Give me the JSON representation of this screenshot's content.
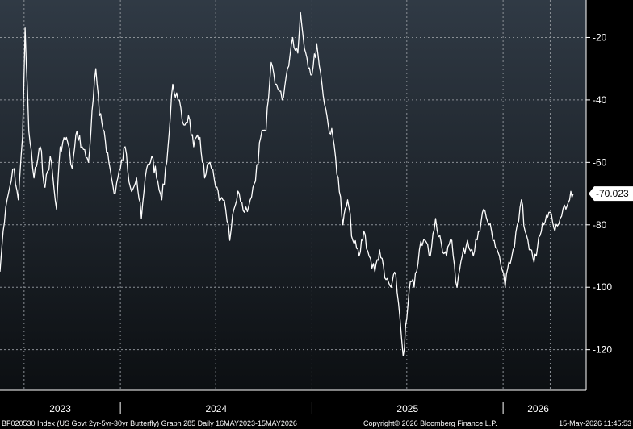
{
  "chart_data": {
    "type": "line",
    "title": "",
    "xlabel": "",
    "ylabel": "",
    "ylim": [
      -133,
      -8
    ],
    "y_ticks": [
      -20,
      -40,
      -60,
      -80,
      -100,
      -120
    ],
    "x_ticks": [
      "2023",
      "2024",
      "2025",
      "2026"
    ],
    "grid": true,
    "last_value": -70.023,
    "last_value_label": "-70.023",
    "series": [
      {
        "points": [
          [
            "2023-05-16",
            -95
          ],
          [
            "2023-05-22",
            -82
          ],
          [
            "2023-06-01",
            -70
          ],
          [
            "2023-06-12",
            -62
          ],
          [
            "2023-06-20",
            -72
          ],
          [
            "2023-06-28",
            -52
          ],
          [
            "2023-07-03",
            -17
          ],
          [
            "2023-07-10",
            -50
          ],
          [
            "2023-07-20",
            -65
          ],
          [
            "2023-08-01",
            -55
          ],
          [
            "2023-08-10",
            -68
          ],
          [
            "2023-08-20",
            -58
          ],
          [
            "2023-09-01",
            -75
          ],
          [
            "2023-09-08",
            -55
          ],
          [
            "2023-09-20",
            -52
          ],
          [
            "2023-10-01",
            -62
          ],
          [
            "2023-10-10",
            -50
          ],
          [
            "2023-10-20",
            -55
          ],
          [
            "2023-11-01",
            -60
          ],
          [
            "2023-11-10",
            -40
          ],
          [
            "2023-11-15",
            -30
          ],
          [
            "2023-11-22",
            -45
          ],
          [
            "2023-12-01",
            -50
          ],
          [
            "2023-12-10",
            -60
          ],
          [
            "2023-12-20",
            -70
          ],
          [
            "2024-01-01",
            -62
          ],
          [
            "2024-01-10",
            -55
          ],
          [
            "2024-01-20",
            -68
          ],
          [
            "2024-02-01",
            -65
          ],
          [
            "2024-02-10",
            -78
          ],
          [
            "2024-02-20",
            -62
          ],
          [
            "2024-03-01",
            -58
          ],
          [
            "2024-03-10",
            -65
          ],
          [
            "2024-03-20",
            -72
          ],
          [
            "2024-04-01",
            -55
          ],
          [
            "2024-04-10",
            -35
          ],
          [
            "2024-04-20",
            -40
          ],
          [
            "2024-05-01",
            -48
          ],
          [
            "2024-05-10",
            -45
          ],
          [
            "2024-05-20",
            -55
          ],
          [
            "2024-06-01",
            -52
          ],
          [
            "2024-06-10",
            -65
          ],
          [
            "2024-06-20",
            -60
          ],
          [
            "2024-07-01",
            -68
          ],
          [
            "2024-07-10",
            -72
          ],
          [
            "2024-07-20",
            -75
          ],
          [
            "2024-07-28",
            -85
          ],
          [
            "2024-08-05",
            -75
          ],
          [
            "2024-08-15",
            -70
          ],
          [
            "2024-08-25",
            -76
          ],
          [
            "2024-09-05",
            -72
          ],
          [
            "2024-09-15",
            -66
          ],
          [
            "2024-09-25",
            -52
          ],
          [
            "2024-10-05",
            -50
          ],
          [
            "2024-10-15",
            -28
          ],
          [
            "2024-10-25",
            -35
          ],
          [
            "2024-11-05",
            -40
          ],
          [
            "2024-11-15",
            -30
          ],
          [
            "2024-11-25",
            -20
          ],
          [
            "2024-12-05",
            -25
          ],
          [
            "2024-12-10",
            -12
          ],
          [
            "2024-12-20",
            -25
          ],
          [
            "2025-01-01",
            -32
          ],
          [
            "2025-01-10",
            -22
          ],
          [
            "2025-01-20",
            -35
          ],
          [
            "2025-02-01",
            -48
          ],
          [
            "2025-02-10",
            -52
          ],
          [
            "2025-02-20",
            -65
          ],
          [
            "2025-03-01",
            -80
          ],
          [
            "2025-03-10",
            -72
          ],
          [
            "2025-03-20",
            -85
          ],
          [
            "2025-04-01",
            -90
          ],
          [
            "2025-04-10",
            -82
          ],
          [
            "2025-04-20",
            -90
          ],
          [
            "2025-05-01",
            -95
          ],
          [
            "2025-05-10",
            -88
          ],
          [
            "2025-05-20",
            -97
          ],
          [
            "2025-06-01",
            -100
          ],
          [
            "2025-06-10",
            -96
          ],
          [
            "2025-06-18",
            -110
          ],
          [
            "2025-06-24",
            -122
          ],
          [
            "2025-07-01",
            -110
          ],
          [
            "2025-07-08",
            -98
          ],
          [
            "2025-07-15",
            -100
          ],
          [
            "2025-07-25",
            -88
          ],
          [
            "2025-08-05",
            -85
          ],
          [
            "2025-08-15",
            -90
          ],
          [
            "2025-08-25",
            -78
          ],
          [
            "2025-09-05",
            -86
          ],
          [
            "2025-09-15",
            -90
          ],
          [
            "2025-09-25",
            -85
          ],
          [
            "2025-10-05",
            -100
          ],
          [
            "2025-10-15",
            -90
          ],
          [
            "2025-10-25",
            -85
          ],
          [
            "2025-11-05",
            -90
          ],
          [
            "2025-11-15",
            -82
          ],
          [
            "2025-11-25",
            -75
          ],
          [
            "2025-12-05",
            -80
          ],
          [
            "2025-12-15",
            -85
          ],
          [
            "2025-12-25",
            -90
          ],
          [
            "2026-01-05",
            -100
          ],
          [
            "2026-01-12",
            -92
          ],
          [
            "2026-01-20",
            -88
          ],
          [
            "2026-01-28",
            -80
          ],
          [
            "2026-02-05",
            -72
          ],
          [
            "2026-02-12",
            -82
          ],
          [
            "2026-02-20",
            -88
          ],
          [
            "2026-03-01",
            -92
          ],
          [
            "2026-03-10",
            -84
          ],
          [
            "2026-03-20",
            -80
          ],
          [
            "2026-04-01",
            -76
          ],
          [
            "2026-04-10",
            -82
          ],
          [
            "2026-04-20",
            -78
          ],
          [
            "2026-05-01",
            -75
          ],
          [
            "2026-05-08",
            -72
          ],
          [
            "2026-05-15",
            -70.023
          ]
        ]
      }
    ]
  },
  "footer": {
    "left": "BF020530 Index (US Govt 2yr-5yr-30yr Butterfly) Graph 285 Daily 16MAY2023-15MAY2026",
    "center": "Copyright© 2026 Bloomberg Finance L.P.",
    "right": "15-May-2026 11:45:53"
  },
  "colors": {
    "bg_top": "#303a45",
    "bg_bottom": "#0c0f12",
    "line": "#ffffff",
    "grid": "#8a8f95"
  }
}
